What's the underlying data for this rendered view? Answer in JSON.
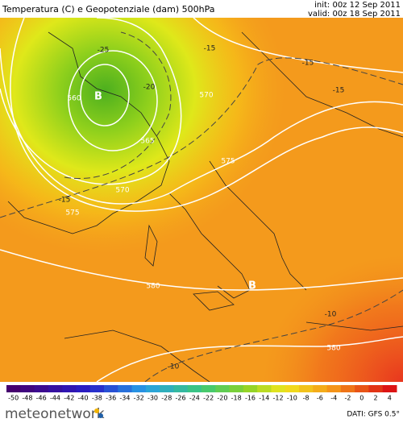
{
  "header": {
    "title": "Temperatura (C) e Geopotenziale (dam) 500hPa",
    "init": "init: 00z 12 Sep 2011",
    "valid": "valid: 00z 18 Sep 2011"
  },
  "map": {
    "contour_labels": [
      -15,
      -15,
      -15,
      -15,
      -20,
      -25,
      -10,
      -10,
      560,
      565,
      570,
      570,
      575,
      575,
      580,
      580
    ],
    "centers": [
      "B",
      "B"
    ]
  },
  "colorbar": {
    "ticks": [
      -50,
      -48,
      -46,
      -44,
      -42,
      -40,
      -38,
      -36,
      -34,
      -32,
      -30,
      -28,
      -26,
      -24,
      -22,
      -20,
      -18,
      -16,
      -14,
      -12,
      -10,
      -8,
      -6,
      -4,
      -2,
      0,
      2,
      4
    ]
  },
  "footer": {
    "brand": "meteonetwork",
    "source": "DATI: GFS 0.5°"
  }
}
